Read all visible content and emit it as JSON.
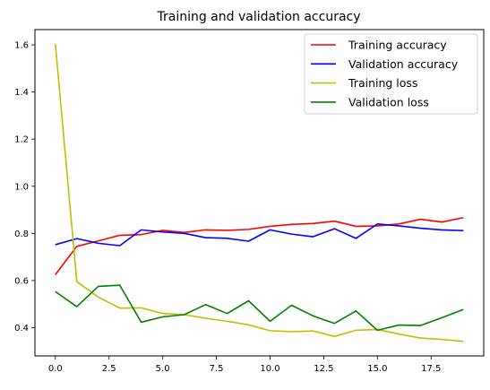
{
  "chart_data": {
    "type": "line",
    "title": "Training and validation accuracy",
    "xlabel": "",
    "ylabel": "",
    "x": [
      0,
      1,
      2,
      3,
      4,
      5,
      6,
      7,
      8,
      9,
      10,
      11,
      12,
      13,
      14,
      15,
      16,
      17,
      18,
      19
    ],
    "xlim": [
      -0.95,
      19.95
    ],
    "ylim": [
      0.28,
      1.665
    ],
    "xticks": [
      0.0,
      2.5,
      5.0,
      7.5,
      10.0,
      12.5,
      15.0,
      17.5
    ],
    "xtick_labels": [
      "0.0",
      "2.5",
      "5.0",
      "7.5",
      "10.0",
      "12.5",
      "15.0",
      "17.5"
    ],
    "yticks": [
      0.4,
      0.6,
      0.8,
      1.0,
      1.2,
      1.4,
      1.6
    ],
    "ytick_labels": [
      "0.4",
      "0.6",
      "0.8",
      "1.0",
      "1.2",
      "1.4",
      "1.6"
    ],
    "grid": false,
    "legend_position": "top-right",
    "series": [
      {
        "name": "Training accuracy",
        "color": "#ff0000",
        "values": [
          0.625,
          0.745,
          0.768,
          0.792,
          0.795,
          0.813,
          0.804,
          0.815,
          0.813,
          0.817,
          0.83,
          0.838,
          0.842,
          0.852,
          0.83,
          0.832,
          0.84,
          0.86,
          0.848,
          0.867
        ]
      },
      {
        "name": "Validation accuracy",
        "color": "#0000ff",
        "values": [
          0.752,
          0.778,
          0.758,
          0.748,
          0.815,
          0.806,
          0.8,
          0.782,
          0.779,
          0.767,
          0.815,
          0.797,
          0.786,
          0.82,
          0.779,
          0.84,
          0.832,
          0.822,
          0.815,
          0.812
        ]
      },
      {
        "name": "Training loss",
        "color": "#bfbf00",
        "values": [
          1.605,
          0.595,
          0.53,
          0.483,
          0.484,
          0.46,
          0.455,
          0.44,
          0.427,
          0.412,
          0.387,
          0.383,
          0.386,
          0.363,
          0.389,
          0.392,
          0.373,
          0.356,
          0.35,
          0.342
        ]
      },
      {
        "name": "Validation loss",
        "color": "#008000",
        "values": [
          0.553,
          0.489,
          0.575,
          0.58,
          0.423,
          0.446,
          0.455,
          0.498,
          0.46,
          0.514,
          0.427,
          0.495,
          0.45,
          0.418,
          0.471,
          0.389,
          0.411,
          0.409,
          0.442,
          0.477
        ]
      }
    ]
  }
}
